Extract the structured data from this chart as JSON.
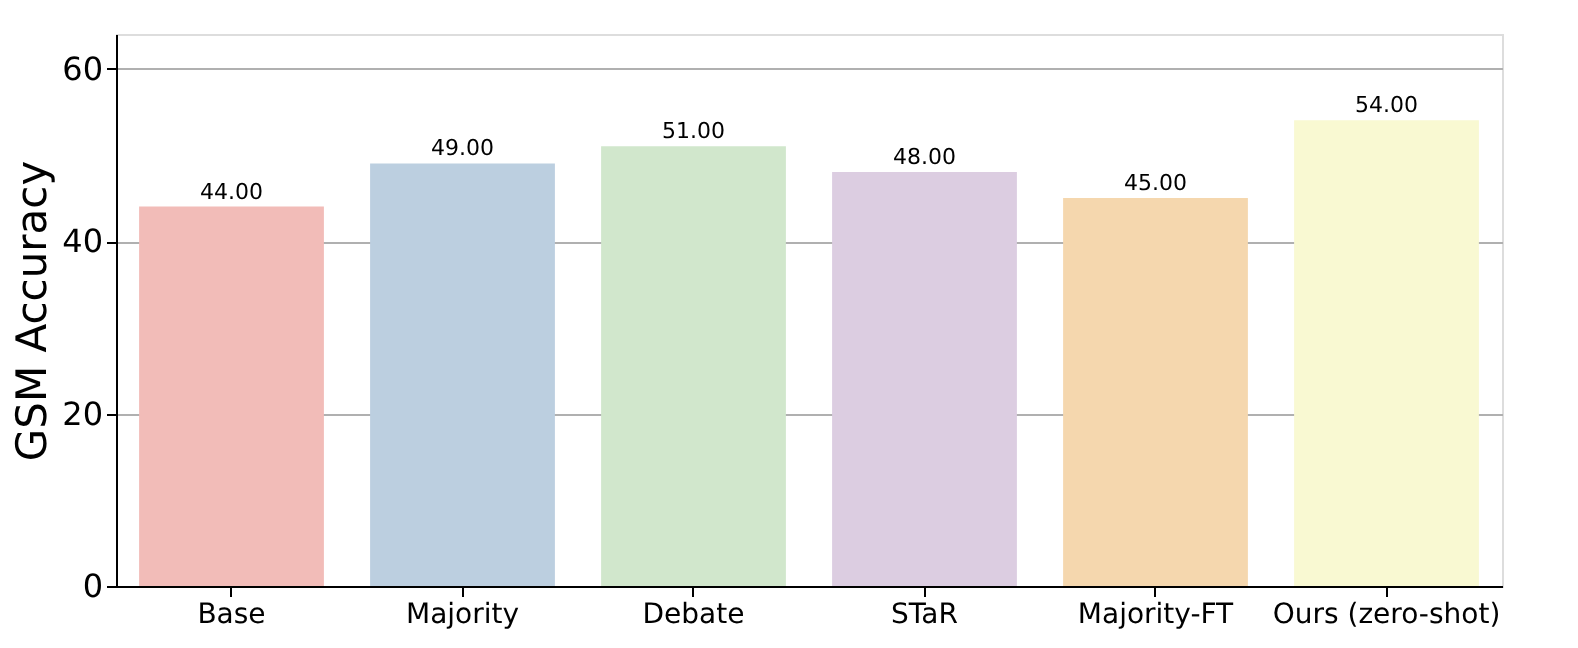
{
  "chart_data": {
    "type": "bar",
    "ylabel": "GSM Accuracy",
    "categories": [
      "Base",
      "Majority",
      "Debate",
      "STaR",
      "Majority-FT",
      "Ours (zero-shot)"
    ],
    "values": [
      44.0,
      49.0,
      51.0,
      48.0,
      45.0,
      54.0
    ],
    "value_labels": [
      "44.00",
      "49.00",
      "51.00",
      "48.00",
      "45.00",
      "54.00"
    ],
    "colors": [
      "#f2bcb8",
      "#bccfe0",
      "#d1e7cc",
      "#dccde1",
      "#f5d7ae",
      "#f9f9d2"
    ],
    "ylim": [
      0,
      64
    ],
    "yticks": [
      0,
      20,
      40,
      60
    ],
    "grid": "y"
  }
}
